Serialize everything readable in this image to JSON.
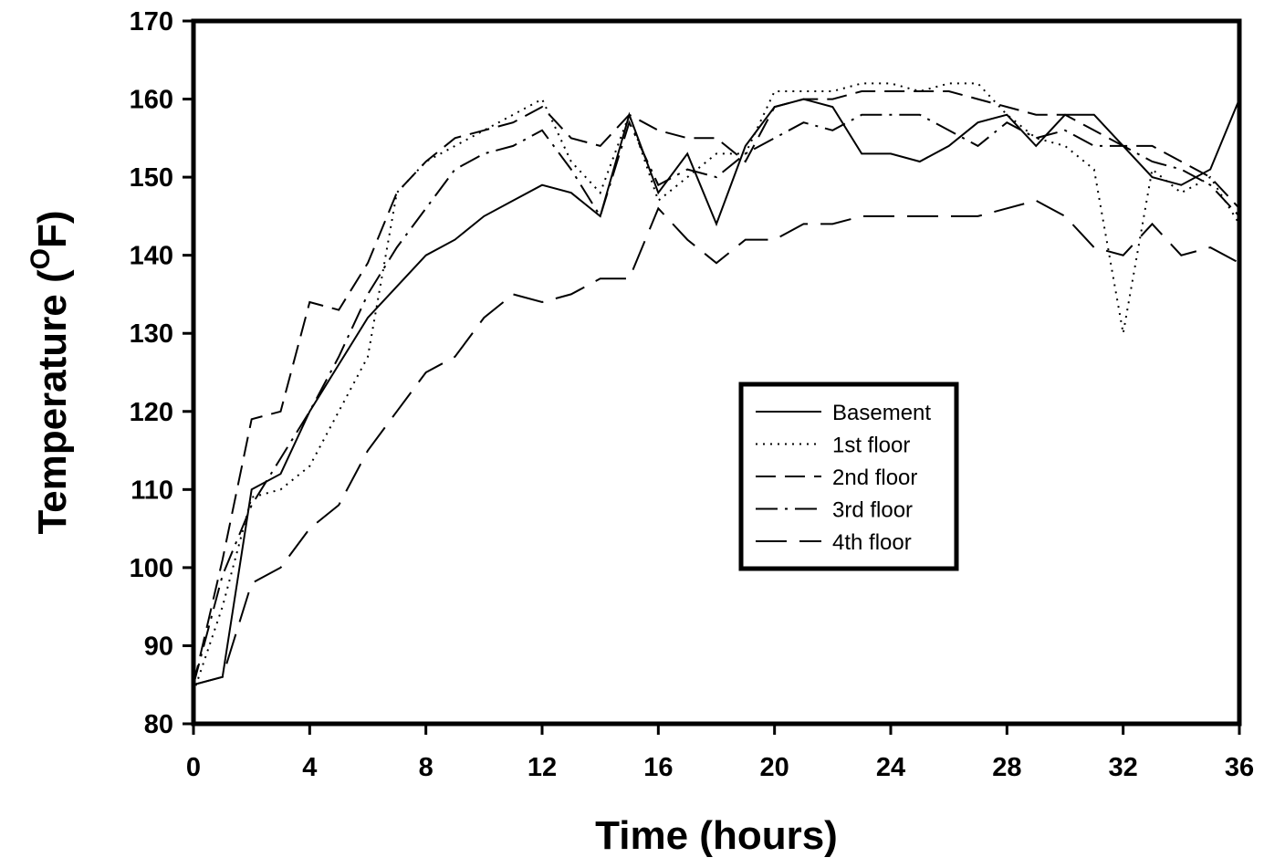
{
  "chart_data": {
    "type": "line",
    "title": "",
    "xlabel": "Time (hours)",
    "ylabel_main": "Temperature (",
    "ylabel_sup": "O",
    "ylabel_unit": "F)",
    "xlim": [
      0,
      36
    ],
    "ylim": [
      80,
      170
    ],
    "xticks": [
      0,
      4,
      8,
      12,
      16,
      20,
      24,
      28,
      32,
      36
    ],
    "xtick_labels": [
      "0",
      "4",
      "8",
      "12",
      "16",
      "20",
      "24",
      "28",
      "32",
      "36"
    ],
    "yticks": [
      80,
      90,
      100,
      110,
      120,
      130,
      140,
      150,
      160,
      170
    ],
    "ytick_labels": [
      "80",
      "90",
      "100",
      "110",
      "120",
      "130",
      "140",
      "150",
      "160",
      "170"
    ],
    "grid": false,
    "legend_position": "center-right",
    "line_color": "#000000",
    "series": [
      {
        "name": "Basement",
        "dash": "solid",
        "x": [
          0,
          1,
          2,
          3,
          4,
          5,
          6,
          7,
          8,
          9,
          10,
          11,
          12,
          13,
          14,
          15,
          16,
          17,
          18,
          19,
          20,
          21,
          22,
          23,
          24,
          25,
          26,
          27,
          28,
          29,
          30,
          31,
          32,
          33,
          34,
          35,
          36
        ],
        "y": [
          85,
          86,
          110,
          112,
          120,
          126,
          132,
          136,
          140,
          142,
          145,
          147,
          149,
          148,
          145,
          158,
          148,
          153,
          144,
          154,
          159,
          160,
          159,
          153,
          153,
          152,
          154,
          157,
          158,
          154,
          158,
          158,
          154,
          150,
          149,
          151,
          160
        ]
      },
      {
        "name": "1st floor",
        "dash": "dotted",
        "x": [
          0,
          1,
          2,
          3,
          4,
          5,
          6,
          7,
          8,
          9,
          10,
          11,
          12,
          13,
          14,
          15,
          16,
          17,
          18,
          19,
          20,
          21,
          22,
          23,
          24,
          25,
          26,
          27,
          28,
          29,
          30,
          31,
          32,
          33,
          34,
          35,
          36
        ],
        "y": [
          84,
          95,
          109,
          110,
          113,
          120,
          127,
          148,
          152,
          154,
          156,
          158,
          160,
          152,
          148,
          158,
          147,
          150,
          153,
          153,
          161,
          161,
          161,
          162,
          162,
          161,
          162,
          162,
          158,
          155,
          154,
          151,
          130,
          151,
          148,
          150,
          144
        ]
      },
      {
        "name": "2nd floor",
        "dash": "dashed",
        "x": [
          0,
          1,
          2,
          3,
          4,
          5,
          6,
          7,
          8,
          9,
          10,
          11,
          12,
          13,
          14,
          15,
          16,
          17,
          18,
          19,
          20,
          21,
          22,
          23,
          24,
          25,
          26,
          27,
          28,
          29,
          30,
          31,
          32,
          33,
          34,
          35,
          36
        ],
        "y": [
          85,
          101,
          119,
          120,
          134,
          133,
          139,
          148,
          152,
          155,
          156,
          157,
          159,
          155,
          154,
          158,
          156,
          155,
          155,
          152,
          159,
          160,
          160,
          161,
          161,
          161,
          161,
          160,
          159,
          158,
          158,
          156,
          154,
          154,
          152,
          150,
          146
        ]
      },
      {
        "name": "3rd floor",
        "dash": "dashdot",
        "x": [
          0,
          1,
          2,
          3,
          4,
          5,
          6,
          7,
          8,
          9,
          10,
          11,
          12,
          13,
          14,
          15,
          16,
          17,
          18,
          19,
          20,
          21,
          22,
          23,
          24,
          25,
          26,
          27,
          28,
          29,
          30,
          31,
          32,
          33,
          34,
          35,
          36
        ],
        "y": [
          85,
          99,
          108,
          114,
          120,
          127,
          135,
          141,
          146,
          151,
          153,
          154,
          156,
          151,
          145,
          157,
          149,
          151,
          150,
          153,
          155,
          157,
          156,
          158,
          158,
          158,
          156,
          154,
          157,
          155,
          156,
          154,
          154,
          152,
          151,
          149,
          145
        ]
      },
      {
        "name": "4th floor",
        "dash": "longdash",
        "x": [
          0,
          1,
          2,
          3,
          4,
          5,
          6,
          7,
          8,
          9,
          10,
          11,
          12,
          13,
          14,
          15,
          16,
          17,
          18,
          19,
          20,
          21,
          22,
          23,
          24,
          25,
          26,
          27,
          28,
          29,
          30,
          31,
          32,
          33,
          34,
          35,
          36
        ],
        "y": [
          85,
          86,
          98,
          100,
          105,
          108,
          115,
          120,
          125,
          127,
          132,
          135,
          134,
          135,
          137,
          137,
          146,
          142,
          139,
          142,
          142,
          144,
          144,
          145,
          145,
          145,
          145,
          145,
          146,
          147,
          145,
          141,
          140,
          144,
          140,
          141,
          139
        ]
      }
    ]
  }
}
